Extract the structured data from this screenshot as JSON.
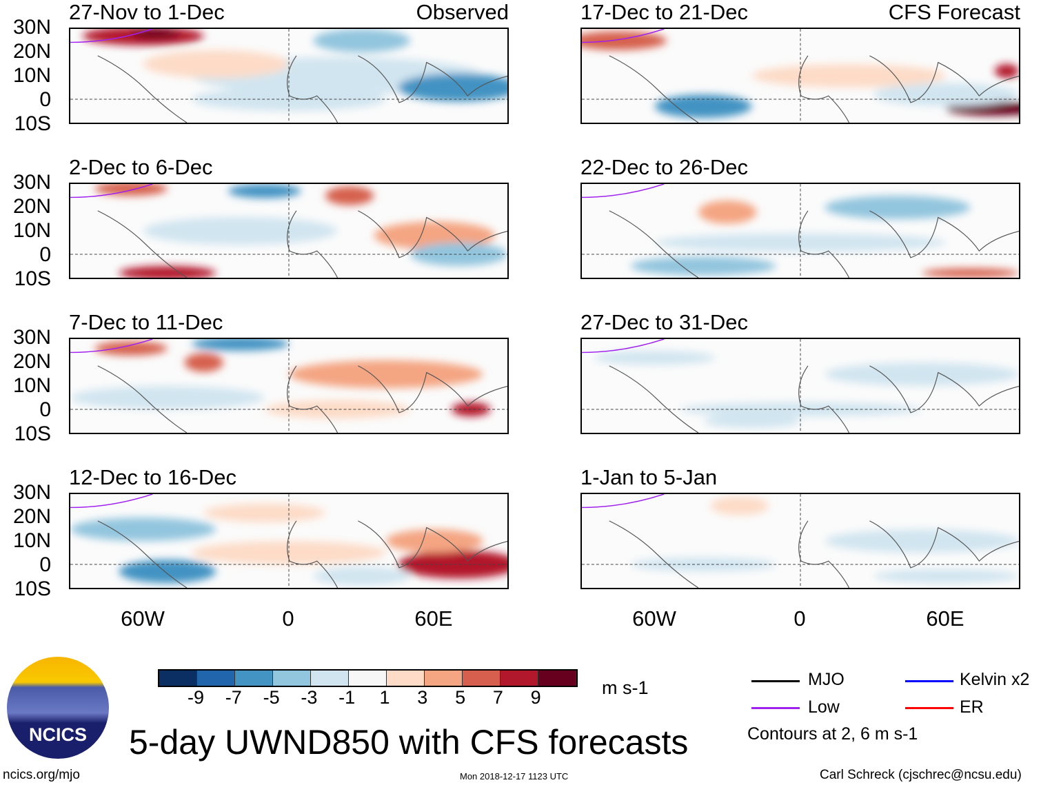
{
  "colorbar": {
    "colors": [
      "#0b2f63",
      "#2166ac",
      "#4393c3",
      "#92c5de",
      "#d1e5f0",
      "#f7f7f7",
      "#fddbc7",
      "#f4a582",
      "#d6604d",
      "#b2182b",
      "#67001f"
    ],
    "labels": [
      "-9",
      "-7",
      "-5",
      "-3",
      "-1",
      "1",
      "3",
      "5",
      "7",
      "9"
    ],
    "units": "m s-1"
  },
  "lat_labels": [
    "30N",
    "20N",
    "10N",
    "0",
    "10S"
  ],
  "lon_labels": [
    "60W",
    "0",
    "60E"
  ],
  "observed_label": "Observed",
  "forecast_label": "CFS Forecast",
  "panels_left": [
    {
      "title": "27-Nov to 1-Dec"
    },
    {
      "title": "2-Dec to 6-Dec"
    },
    {
      "title": "7-Dec to 11-Dec"
    },
    {
      "title": "12-Dec to 16-Dec"
    }
  ],
  "panels_right": [
    {
      "title": "17-Dec to 21-Dec"
    },
    {
      "title": "22-Dec to 26-Dec"
    },
    {
      "title": "27-Dec to 31-Dec"
    },
    {
      "title": "1-Jan to 5-Jan"
    }
  ],
  "legend": {
    "mjo": "MJO",
    "kelvin": "Kelvin x2",
    "low": "Low",
    "er": "ER",
    "note": "Contours at 2, 6 m s-1",
    "colors": {
      "mjo": "#000000",
      "kelvin": "#0000ff",
      "low": "#a020f0",
      "er": "#ff0000"
    }
  },
  "title": "5-day UWND850 with CFS forecasts",
  "logo_text": "NCICS",
  "footer": {
    "url": "ncics.org/mjo",
    "timestamp": "Mon 2018-12-17 1123 UTC",
    "author": "Carl Schreck (cjschrec@ncsu.edu)"
  }
}
